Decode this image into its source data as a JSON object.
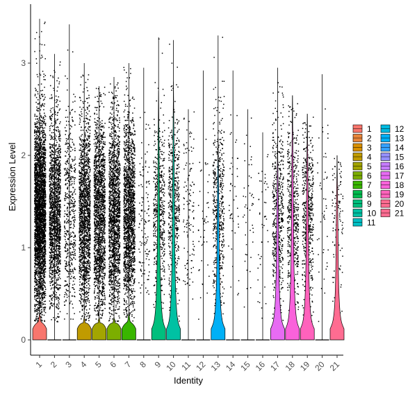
{
  "chart_data": {
    "type": "violin",
    "xlabel": "Identity",
    "ylabel": "Expression Level",
    "ylim": [
      -0.3,
      3.7
    ],
    "y_ticks": [
      "0",
      "1",
      "2",
      "3"
    ],
    "grid": false,
    "legend_position": "right",
    "categories": [
      "1",
      "2",
      "3",
      "4",
      "5",
      "6",
      "7",
      "8",
      "9",
      "10",
      "11",
      "12",
      "13",
      "14",
      "15",
      "16",
      "17",
      "18",
      "19",
      "20",
      "21"
    ],
    "colors": [
      "#F8766D",
      "#E8853A",
      "#D89000",
      "#C09B00",
      "#A3A500",
      "#7CAE00",
      "#39B600",
      "#00BB4E",
      "#00BF7D",
      "#00C1A3",
      "#00BFC4",
      "#00BAE0",
      "#00B0F6",
      "#35A2FF",
      "#9590FF",
      "#C77CFF",
      "#E76BF3",
      "#FA62DB",
      "#FF62BC",
      "#FF6C91",
      "#FF6C91"
    ],
    "series": [
      {
        "name": "1",
        "max": 3.48,
        "violin_peak": 0.3,
        "spike_width": 0.45,
        "point_density": "very high"
      },
      {
        "name": "2",
        "max": 3.1,
        "violin_peak": 0.0,
        "spike_width": 0.0,
        "point_density": "high"
      },
      {
        "name": "3",
        "max": 3.42,
        "violin_peak": 0.0,
        "spike_width": 0.0,
        "point_density": "medium"
      },
      {
        "name": "4",
        "max": 3.0,
        "violin_peak": 0.25,
        "spike_width": 0.6,
        "point_density": "high"
      },
      {
        "name": "5",
        "max": 2.75,
        "violin_peak": 0.25,
        "spike_width": 0.6,
        "point_density": "high"
      },
      {
        "name": "6",
        "max": 2.85,
        "violin_peak": 0.25,
        "spike_width": 0.6,
        "point_density": "high"
      },
      {
        "name": "7",
        "max": 3.0,
        "violin_peak": 0.3,
        "spike_width": 0.6,
        "point_density": "high"
      },
      {
        "name": "8",
        "max": 2.95,
        "violin_peak": 0.0,
        "spike_width": 0.0,
        "point_density": "low"
      },
      {
        "name": "9",
        "max": 3.28,
        "violin_peak": 2.7,
        "spike_width": 0.6,
        "point_density": "medium"
      },
      {
        "name": "10",
        "max": 3.25,
        "violin_peak": 2.8,
        "spike_width": 0.55,
        "point_density": "medium"
      },
      {
        "name": "11",
        "max": 2.5,
        "violin_peak": 0.0,
        "spike_width": 0.0,
        "point_density": "low"
      },
      {
        "name": "12",
        "max": 2.92,
        "violin_peak": 0.0,
        "spike_width": 0.0,
        "point_density": "very low"
      },
      {
        "name": "13",
        "max": 3.3,
        "violin_peak": 2.2,
        "spike_width": 0.6,
        "point_density": "medium"
      },
      {
        "name": "14",
        "max": 2.92,
        "violin_peak": 0.0,
        "spike_width": 0.0,
        "point_density": "very low"
      },
      {
        "name": "15",
        "max": 2.5,
        "violin_peak": 0.0,
        "spike_width": 0.0,
        "point_density": "very low"
      },
      {
        "name": "16",
        "max": 2.25,
        "violin_peak": 0.0,
        "spike_width": 0.0,
        "point_density": "very low"
      },
      {
        "name": "17",
        "max": 2.95,
        "violin_peak": 2.2,
        "spike_width": 0.6,
        "point_density": "medium"
      },
      {
        "name": "18",
        "max": 2.65,
        "violin_peak": 2.65,
        "spike_width": 0.6,
        "point_density": "medium"
      },
      {
        "name": "19",
        "max": 2.45,
        "violin_peak": 2.45,
        "spike_width": 0.6,
        "point_density": "medium"
      },
      {
        "name": "20",
        "max": 2.88,
        "violin_peak": 0.0,
        "spike_width": 0.0,
        "point_density": "very low"
      },
      {
        "name": "21",
        "max": 2.0,
        "violin_peak": 2.0,
        "spike_width": 0.6,
        "point_density": "low"
      }
    ]
  }
}
